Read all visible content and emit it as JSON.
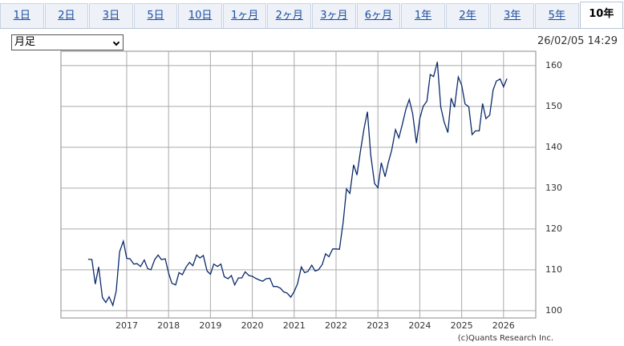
{
  "tabs": [
    "1日",
    "2日",
    "3日",
    "5日",
    "10日",
    "1ヶ月",
    "2ヶ月",
    "3ヶ月",
    "6ヶ月",
    "1年",
    "2年",
    "3年",
    "5年",
    "10年"
  ],
  "active_tab": 13,
  "period_select": "月足",
  "timestamp": "26/02/05 14:29",
  "credit": "(c)Quants Research Inc.",
  "chart_data": {
    "type": "line",
    "grid": true,
    "color": "#0b2a6b",
    "xlim": [
      2015.43,
      2026.77
    ],
    "ylim": [
      98.2,
      163.5
    ],
    "xticks": [
      2017,
      2018,
      2019,
      2020,
      2021,
      2022,
      2023,
      2024,
      2025,
      2026
    ],
    "yticks": [
      100,
      110,
      120,
      130,
      140,
      150,
      160
    ],
    "x": [
      2016.08,
      2016.17,
      2016.25,
      2016.33,
      2016.42,
      2016.5,
      2016.58,
      2016.67,
      2016.75,
      2016.83,
      2016.92,
      2017,
      2017.08,
      2017.17,
      2017.25,
      2017.33,
      2017.42,
      2017.5,
      2017.58,
      2017.67,
      2017.75,
      2017.83,
      2017.92,
      2018,
      2018.08,
      2018.17,
      2018.25,
      2018.33,
      2018.42,
      2018.5,
      2018.58,
      2018.67,
      2018.75,
      2018.83,
      2018.92,
      2019,
      2019.08,
      2019.17,
      2019.25,
      2019.33,
      2019.42,
      2019.5,
      2019.58,
      2019.67,
      2019.75,
      2019.83,
      2019.92,
      2020,
      2020.08,
      2020.17,
      2020.25,
      2020.33,
      2020.42,
      2020.5,
      2020.58,
      2020.67,
      2020.75,
      2020.83,
      2020.92,
      2021,
      2021.08,
      2021.17,
      2021.25,
      2021.33,
      2021.42,
      2021.5,
      2021.58,
      2021.67,
      2021.75,
      2021.83,
      2021.92,
      2022,
      2022.08,
      2022.17,
      2022.25,
      2022.33,
      2022.42,
      2022.5,
      2022.58,
      2022.67,
      2022.75,
      2022.83,
      2022.92,
      2023,
      2023.08,
      2023.17,
      2023.25,
      2023.33,
      2023.42,
      2023.5,
      2023.58,
      2023.67,
      2023.75,
      2023.83,
      2023.92,
      2024,
      2024.08,
      2024.17,
      2024.25,
      2024.33,
      2024.42,
      2024.5,
      2024.58,
      2024.67,
      2024.75,
      2024.83,
      2024.92,
      2025,
      2025.08,
      2025.17,
      2025.25,
      2025.33,
      2025.42,
      2025.5,
      2025.58,
      2025.67,
      2025.75,
      2025.83,
      2025.92,
      2026,
      2026.08
    ],
    "values": [
      112.6,
      112.5,
      106.5,
      110.7,
      103.2,
      102.0,
      103.4,
      101.3,
      104.8,
      114.4,
      117.0,
      112.8,
      112.7,
      111.4,
      111.5,
      110.8,
      112.4,
      110.3,
      110.0,
      112.5,
      113.6,
      112.5,
      112.7,
      109.2,
      106.7,
      106.3,
      109.3,
      108.8,
      110.7,
      111.8,
      111.0,
      113.6,
      112.9,
      113.5,
      109.7,
      108.9,
      111.4,
      110.8,
      111.4,
      108.3,
      107.8,
      108.6,
      106.3,
      108.0,
      108.0,
      109.5,
      108.6,
      108.4,
      107.9,
      107.5,
      107.2,
      107.8,
      107.9,
      105.9,
      105.9,
      105.5,
      104.6,
      104.3,
      103.3,
      104.7,
      106.6,
      110.7,
      109.3,
      109.6,
      111.1,
      109.7,
      110.0,
      111.3,
      113.9,
      113.2,
      115.1,
      115.1,
      115.0,
      121.7,
      129.8,
      128.7,
      135.7,
      133.2,
      138.9,
      144.7,
      148.7,
      138.0,
      131.1,
      130.1,
      136.2,
      132.8,
      136.3,
      139.3,
      144.3,
      142.3,
      145.5,
      149.4,
      151.7,
      148.2,
      141.0,
      147.0,
      150.0,
      151.3,
      157.8,
      157.3,
      160.9,
      149.9,
      146.2,
      143.6,
      152.0,
      149.8,
      157.2,
      155.2,
      150.6,
      149.9,
      143.1,
      144.0,
      144.0,
      150.7,
      147.0,
      147.9,
      154.0,
      156.2,
      156.7,
      154.8,
      156.8
    ]
  }
}
